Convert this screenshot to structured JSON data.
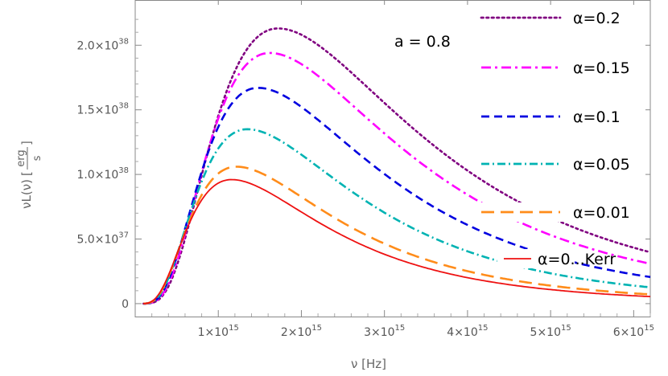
{
  "chart_data": {
    "type": "line",
    "xlabel": "ν [Hz]",
    "ylabel": "νL(ν)",
    "ylabel_unit_num": "erg",
    "ylabel_unit_den": "s",
    "annotation": "a = 0.8",
    "xlim": [
      0,
      6200000000000000.0
    ],
    "ylim": [
      -1e+37,
      2.35e+38
    ],
    "x_ticks": [
      {
        "value": 1000000000000000.0,
        "mantissa": "1",
        "exponent": "15"
      },
      {
        "value": 2000000000000000.0,
        "mantissa": "2",
        "exponent": "15"
      },
      {
        "value": 3000000000000000.0,
        "mantissa": "3",
        "exponent": "15"
      },
      {
        "value": 4000000000000000.0,
        "mantissa": "4",
        "exponent": "15"
      },
      {
        "value": 5000000000000000.0,
        "mantissa": "5",
        "exponent": "15"
      },
      {
        "value": 6000000000000000.0,
        "mantissa": "6",
        "exponent": "15"
      }
    ],
    "y_ticks": [
      {
        "value": 0,
        "mantissa": "0",
        "exponent": ""
      },
      {
        "value": 5e+37,
        "mantissa": "5.0",
        "exponent": "37"
      },
      {
        "value": 1e+38,
        "mantissa": "1.0",
        "exponent": "38"
      },
      {
        "value": 1.5e+38,
        "mantissa": "1.5",
        "exponent": "38"
      },
      {
        "value": 2e+38,
        "mantissa": "2.0",
        "exponent": "38"
      }
    ],
    "series": [
      {
        "name": "α=0.2",
        "color": "#800080",
        "dash": "dotted",
        "peak_x": 1720000000000000.0,
        "peak_y": 2.13e+38
      },
      {
        "name": "α=0.15",
        "color": "#ff00ff",
        "dash": "dashdot",
        "peak_x": 1620000000000000.0,
        "peak_y": 1.94e+38
      },
      {
        "name": "α=0.1",
        "color": "#0000e0",
        "dash": "dashed",
        "peak_x": 1480000000000000.0,
        "peak_y": 1.67e+38
      },
      {
        "name": "α=0.05",
        "color": "#00b3b3",
        "dash": "dashdot2",
        "peak_x": 1350000000000000.0,
        "peak_y": 1.35e+38
      },
      {
        "name": "α=0.01",
        "color": "#ff8c1a",
        "dash": "longdash",
        "peak_x": 1220000000000000.0,
        "peak_y": 1.06e+38
      },
      {
        "name": "α=0...Kerr",
        "color": "#ee1111",
        "dash": "solid",
        "peak_x": 1160000000000000.0,
        "peak_y": 9.6e+37
      }
    ],
    "x_start": 100000000000000.0
  }
}
